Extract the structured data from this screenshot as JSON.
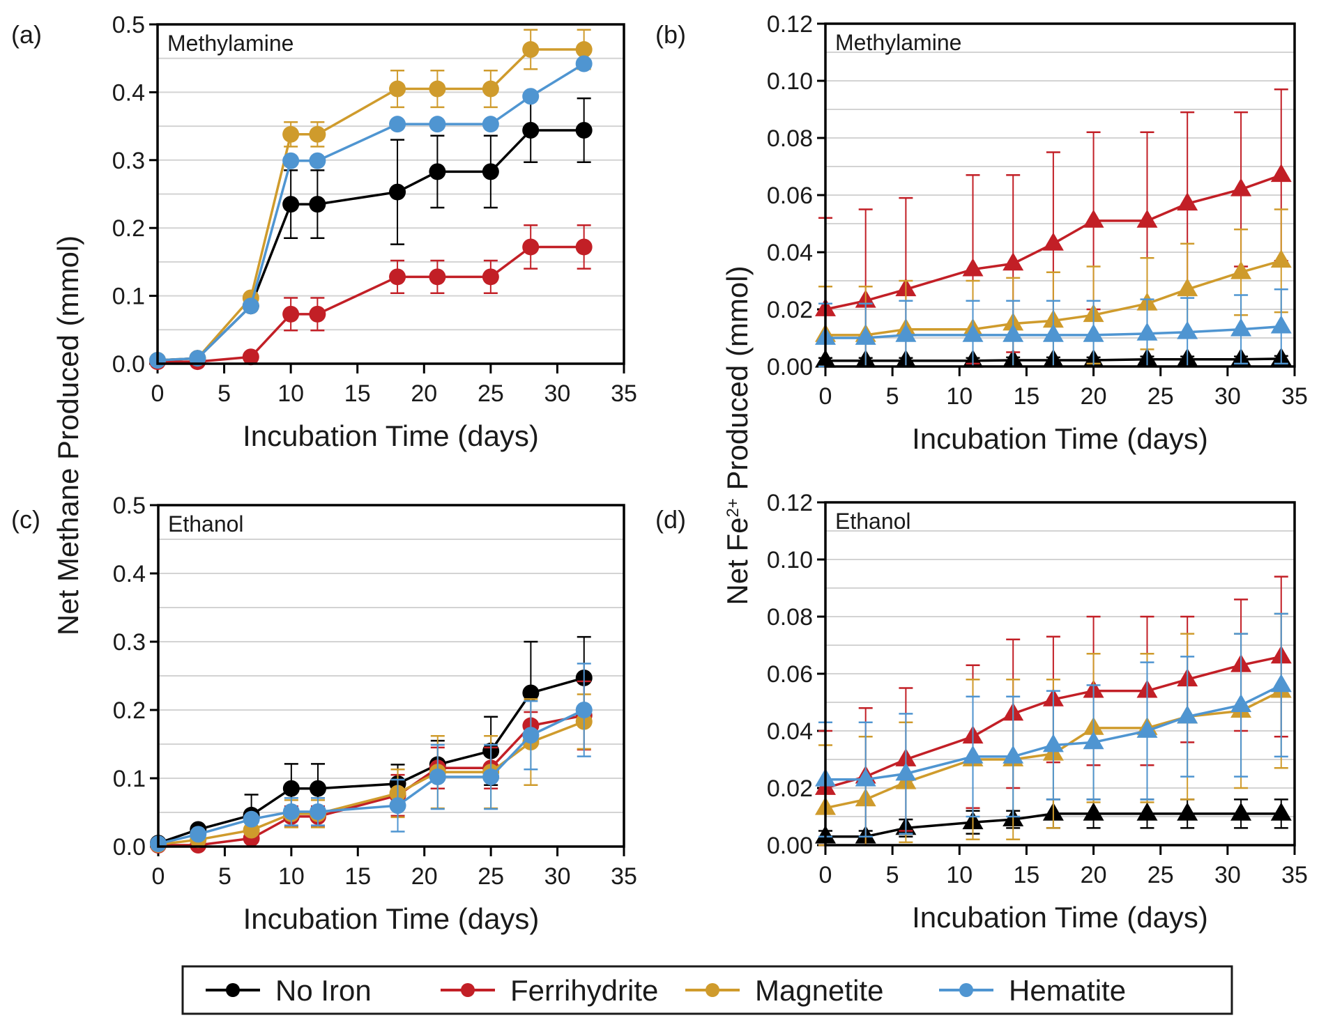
{
  "figure": {
    "shared_ylabel_left": "Net Methane Produced (mmol)",
    "shared_ylabel_right_prefix": "Net Fe",
    "shared_ylabel_right_sup": "2+",
    "shared_ylabel_right_suffix": " Produced (mmol)",
    "legend": [
      {
        "name": "No Iron",
        "color": "#000000"
      },
      {
        "name": "Ferrihydrite",
        "color": "#c21f26"
      },
      {
        "name": "Magnetite",
        "color": "#cf9b2c"
      },
      {
        "name": "Hematite",
        "color": "#4f95d1"
      }
    ],
    "legend_placement": "bottom-center"
  },
  "chart_data": [
    {
      "panel": "(a)",
      "type": "line",
      "marker": "circle",
      "title": "Methylamine",
      "xlabel": "Incubation Time (days)",
      "ylabel": "Net Methane Produced (mmol)",
      "xlim": [
        0,
        35
      ],
      "ylim": [
        0,
        0.5
      ],
      "xticks": [
        0,
        5,
        10,
        15,
        20,
        25,
        30,
        35
      ],
      "yticks": [
        0.0,
        0.1,
        0.2,
        0.3,
        0.4,
        0.5
      ],
      "ytick_labels": [
        "0.0",
        "0.1",
        "0.2",
        "0.3",
        "0.4",
        "0.5"
      ],
      "grid": "horizontal",
      "x": [
        0,
        3,
        7,
        10,
        12,
        18,
        21,
        25,
        28,
        32
      ],
      "series": [
        {
          "name": "No Iron",
          "color": "#000000",
          "values": [
            0.005,
            0.008,
            0.085,
            0.235,
            0.235,
            0.253,
            0.283,
            0.283,
            0.344,
            0.344
          ],
          "errors": [
            0,
            0,
            0,
            0.05,
            0.05,
            0.077,
            0.053,
            0.053,
            0.047,
            0.047
          ]
        },
        {
          "name": "Ferrihydrite",
          "color": "#c21f26",
          "values": [
            0.003,
            0.003,
            0.01,
            0.073,
            0.073,
            0.128,
            0.128,
            0.128,
            0.172,
            0.172
          ],
          "errors": [
            0,
            0,
            0,
            0.024,
            0.024,
            0.024,
            0.024,
            0.024,
            0.032,
            0.032
          ]
        },
        {
          "name": "Magnetite",
          "color": "#cf9b2c",
          "values": [
            0.005,
            0.008,
            0.097,
            0.338,
            0.338,
            0.405,
            0.405,
            0.405,
            0.463,
            0.463
          ],
          "errors": [
            0,
            0,
            0,
            0.018,
            0.018,
            0.027,
            0.027,
            0.027,
            0.029,
            0.029
          ]
        },
        {
          "name": "Hematite",
          "color": "#4f95d1",
          "values": [
            0.005,
            0.008,
            0.085,
            0.299,
            0.299,
            0.353,
            0.353,
            0.353,
            0.394,
            0.442
          ],
          "errors": [
            0,
            0,
            0,
            0,
            0,
            0,
            0,
            0,
            0,
            0
          ]
        }
      ]
    },
    {
      "panel": "(b)",
      "type": "line",
      "marker": "triangle",
      "title": "Methylamine",
      "xlabel": "Incubation Time (days)",
      "ylabel": "Net Fe2+ Produced (mmol)",
      "xlim": [
        0,
        35
      ],
      "ylim": [
        0,
        0.12
      ],
      "xticks": [
        0,
        5,
        10,
        15,
        20,
        25,
        30,
        35
      ],
      "yticks": [
        0.0,
        0.02,
        0.04,
        0.06,
        0.08,
        0.1,
        0.12
      ],
      "ytick_labels": [
        "0.00",
        "0.02",
        "0.04",
        "0.06",
        "0.08",
        "0.10",
        "0.12"
      ],
      "grid": "horizontal",
      "x": [
        0,
        3,
        6,
        11,
        14,
        17,
        20,
        24,
        27,
        31,
        34
      ],
      "series": [
        {
          "name": "No Iron",
          "color": "#000000",
          "values": [
            0.002,
            0.002,
            0.002,
            0.002,
            0.0022,
            0.0022,
            0.0022,
            0.0025,
            0.0025,
            0.0025,
            0.0027
          ],
          "errors": [
            0.001,
            0.001,
            0.001,
            0.001,
            0.001,
            0.001,
            0.001,
            0.001,
            0.001,
            0.001,
            0.001
          ]
        },
        {
          "name": "Ferrihydrite",
          "color": "#c21f26",
          "values": [
            0.02,
            0.023,
            0.027,
            0.034,
            0.036,
            0.043,
            0.051,
            0.051,
            0.057,
            0.062,
            0.067
          ],
          "errors": [
            0.032,
            0.032,
            0.032,
            0.033,
            0.031,
            0.032,
            0.031,
            0.031,
            0.032,
            0.027,
            0.03
          ]
        },
        {
          "name": "Magnetite",
          "color": "#cf9b2c",
          "values": [
            0.011,
            0.011,
            0.013,
            0.013,
            0.015,
            0.016,
            0.018,
            0.022,
            0.027,
            0.033,
            0.037
          ],
          "errors": [
            0.017,
            0.017,
            0.017,
            0.017,
            0.016,
            0.017,
            0.017,
            0.016,
            0.016,
            0.015,
            0.018
          ]
        },
        {
          "name": "Hematite",
          "color": "#4f95d1",
          "values": [
            0.01,
            0.01,
            0.011,
            0.011,
            0.011,
            0.011,
            0.011,
            0.0115,
            0.012,
            0.013,
            0.014
          ],
          "errors": [
            0.012,
            0.012,
            0.012,
            0.012,
            0.012,
            0.012,
            0.012,
            0.012,
            0.012,
            0.012,
            0.013
          ]
        }
      ]
    },
    {
      "panel": "(c)",
      "type": "line",
      "marker": "circle",
      "title": "Ethanol",
      "xlabel": "Incubation Time (days)",
      "ylabel": "Net Methane Produced (mmol)",
      "xlim": [
        0,
        35
      ],
      "ylim": [
        0,
        0.5
      ],
      "xticks": [
        0,
        5,
        10,
        15,
        20,
        25,
        30,
        35
      ],
      "yticks": [
        0.0,
        0.1,
        0.2,
        0.3,
        0.4,
        0.5
      ],
      "ytick_labels": [
        "0.0",
        "0.1",
        "0.2",
        "0.3",
        "0.4",
        "0.5"
      ],
      "grid": "horizontal",
      "x": [
        0,
        3,
        7,
        10,
        12,
        18,
        21,
        25,
        28,
        32
      ],
      "series": [
        {
          "name": "No Iron",
          "color": "#000000",
          "values": [
            0.005,
            0.025,
            0.046,
            0.085,
            0.085,
            0.092,
            0.12,
            0.14,
            0.225,
            0.247
          ],
          "errors": [
            0,
            0,
            0.03,
            0.036,
            0.036,
            0.028,
            0.035,
            0.05,
            0.075,
            0.06
          ]
        },
        {
          "name": "Ferrihydrite",
          "color": "#c21f26",
          "values": [
            0.002,
            0.002,
            0.012,
            0.044,
            0.044,
            0.075,
            0.115,
            0.115,
            0.177,
            0.192
          ],
          "errors": [
            0,
            0,
            0,
            0.015,
            0.015,
            0.03,
            0.03,
            0.03,
            0.02,
            0.05
          ]
        },
        {
          "name": "Magnetite",
          "color": "#cf9b2c",
          "values": [
            0.003,
            0.01,
            0.024,
            0.048,
            0.048,
            0.078,
            0.109,
            0.109,
            0.153,
            0.183
          ],
          "errors": [
            0,
            0,
            0,
            0.02,
            0.02,
            0.035,
            0.053,
            0.053,
            0.063,
            0.04
          ]
        },
        {
          "name": "Hematite",
          "color": "#4f95d1",
          "values": [
            0.004,
            0.018,
            0.04,
            0.051,
            0.051,
            0.06,
            0.102,
            0.102,
            0.163,
            0.2
          ],
          "errors": [
            0,
            0,
            0,
            0.02,
            0.02,
            0.038,
            0.047,
            0.047,
            0.05,
            0.068
          ]
        }
      ]
    },
    {
      "panel": "(d)",
      "type": "line",
      "marker": "triangle",
      "title": "Ethanol",
      "xlabel": "Incubation Time (days)",
      "ylabel": "Net Fe2+ Produced (mmol)",
      "xlim": [
        0,
        35
      ],
      "ylim": [
        0,
        0.12
      ],
      "xticks": [
        0,
        5,
        10,
        15,
        20,
        25,
        30,
        35
      ],
      "yticks": [
        0.0,
        0.02,
        0.04,
        0.06,
        0.08,
        0.1,
        0.12
      ],
      "ytick_labels": [
        "0.00",
        "0.02",
        "0.04",
        "0.06",
        "0.08",
        "0.10",
        "0.12"
      ],
      "grid": "horizontal",
      "x": [
        0,
        3,
        6,
        11,
        14,
        17,
        20,
        24,
        27,
        31,
        34
      ],
      "series": [
        {
          "name": "No Iron",
          "color": "#000000",
          "values": [
            0.003,
            0.003,
            0.006,
            0.008,
            0.009,
            0.011,
            0.011,
            0.011,
            0.011,
            0.011,
            0.011
          ],
          "errors": [
            0.002,
            0.002,
            0.003,
            0.004,
            0.003,
            0.005,
            0.005,
            0.005,
            0.005,
            0.005,
            0.005
          ]
        },
        {
          "name": "Ferrihydrite",
          "color": "#c21f26",
          "values": [
            0.02,
            0.024,
            0.03,
            0.038,
            0.046,
            0.051,
            0.054,
            0.054,
            0.058,
            0.063,
            0.066
          ],
          "errors": [
            0.02,
            0.024,
            0.025,
            0.025,
            0.026,
            0.022,
            0.026,
            0.026,
            0.022,
            0.023,
            0.028
          ]
        },
        {
          "name": "Magnetite",
          "color": "#cf9b2c",
          "values": [
            0.013,
            0.016,
            0.022,
            0.03,
            0.03,
            0.032,
            0.041,
            0.041,
            0.045,
            0.047,
            0.054
          ],
          "errors": [
            0.022,
            0.022,
            0.021,
            0.028,
            0.028,
            0.026,
            0.026,
            0.026,
            0.029,
            0.027,
            0.027
          ]
        },
        {
          "name": "Hematite",
          "color": "#4f95d1",
          "values": [
            0.023,
            0.023,
            0.025,
            0.031,
            0.031,
            0.035,
            0.036,
            0.04,
            0.045,
            0.049,
            0.056
          ],
          "errors": [
            0.02,
            0.02,
            0.021,
            0.021,
            0.021,
            0.019,
            0.02,
            0.024,
            0.021,
            0.025,
            0.025
          ]
        }
      ]
    }
  ]
}
